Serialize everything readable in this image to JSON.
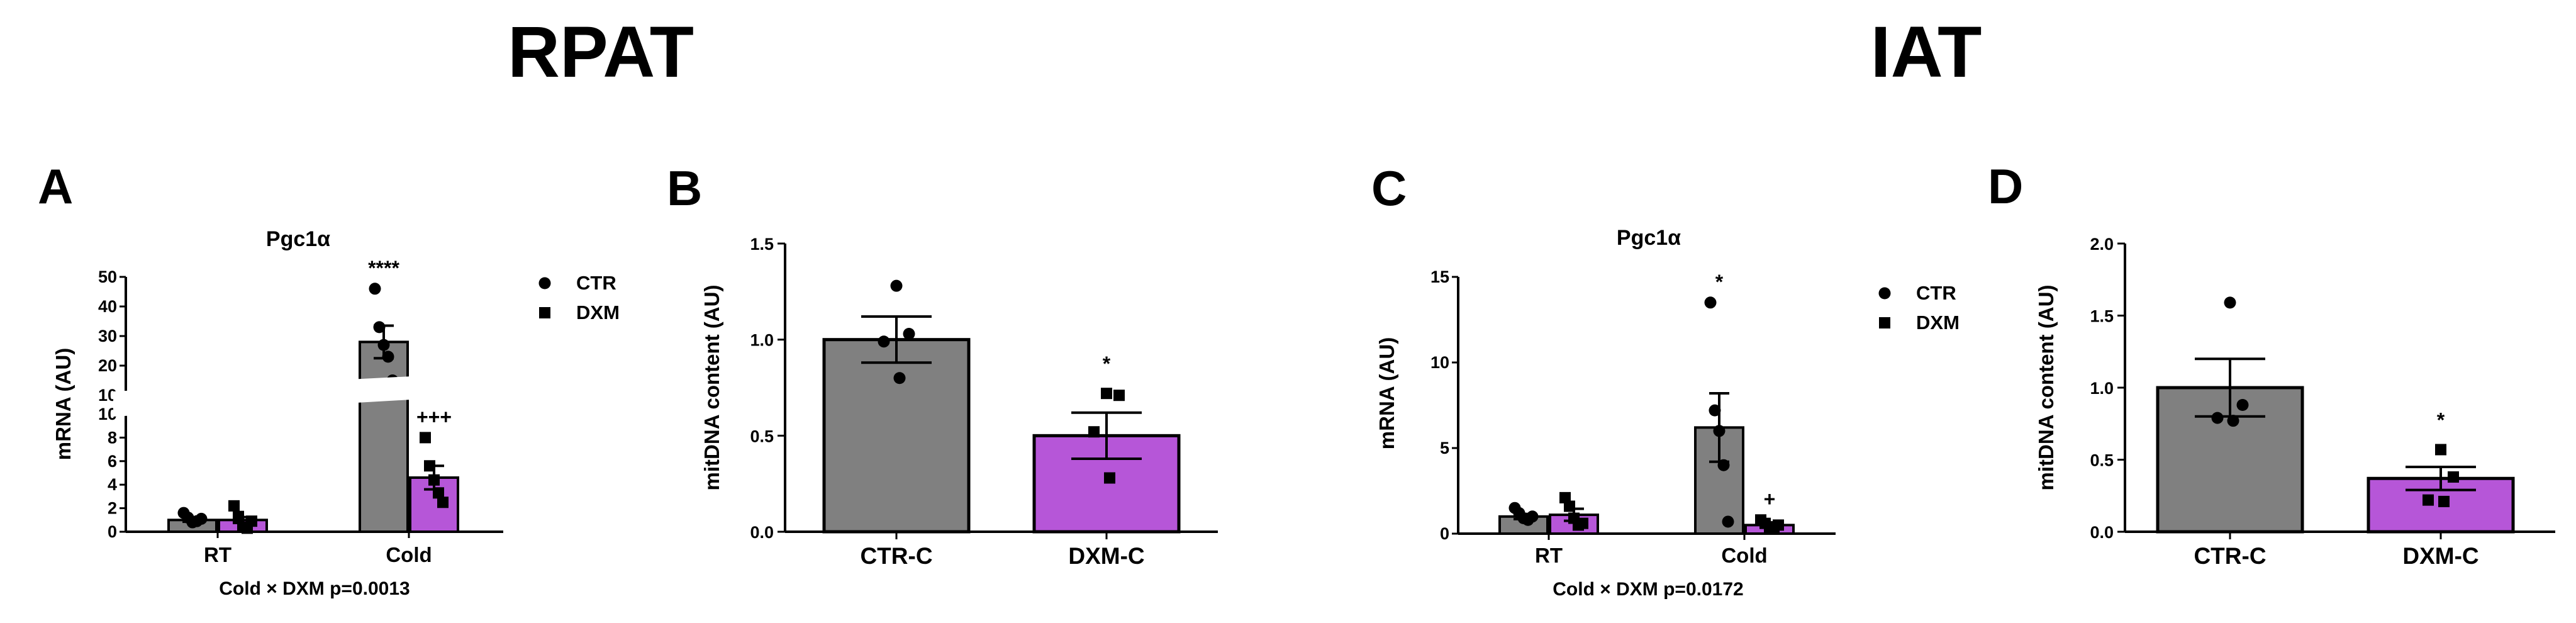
{
  "section_titles": [
    "RPAT",
    "IAT"
  ],
  "chart_data": [
    {
      "panel": "A",
      "type": "bar",
      "title": "Pgc1α",
      "xlabel": "",
      "ylabel": "mRNA (AU)",
      "categories": [
        "RT",
        "Cold"
      ],
      "axis_break": {
        "lower": [
          0,
          10
        ],
        "upper": [
          10,
          50
        ]
      },
      "yticks_lower": [
        0,
        2,
        4,
        6,
        8,
        10
      ],
      "yticks_upper": [
        10,
        20,
        30,
        40,
        50
      ],
      "legend": [
        {
          "label": "CTR",
          "marker": "circle"
        },
        {
          "label": "DXM",
          "marker": "square"
        }
      ],
      "series": [
        {
          "name": "CTR",
          "color": "#808080",
          "marker": "circle",
          "values": [
            1.0,
            28.0
          ],
          "sem": [
            0.15,
            5.5
          ],
          "points": [
            [
              1.6,
              1.2,
              0.8,
              0.9,
              1.1
            ],
            [
              46,
              33,
              27,
              23,
              15
            ]
          ]
        },
        {
          "name": "DXM",
          "color": "#b656d8",
          "marker": "square",
          "values": [
            1.0,
            4.6
          ],
          "sem": [
            0.25,
            1.0
          ],
          "points": [
            [
              2.2,
              1.3,
              0.4,
              0.3,
              0.9
            ],
            [
              8.0,
              5.6,
              4.4,
              3.3,
              2.5
            ]
          ]
        }
      ],
      "annotations": [
        {
          "text": "****",
          "category": 1,
          "series": 0
        },
        {
          "text": "+++",
          "category": 1,
          "series": 1
        }
      ],
      "stat_text": "Cold × DXM p=0.0013"
    },
    {
      "panel": "B",
      "type": "bar",
      "title": "",
      "xlabel": "",
      "ylabel": "mitDNA content (AU)",
      "categories": [
        "CTR-C",
        "DXM-C"
      ],
      "ylim": [
        0,
        1.5
      ],
      "yticks": [
        "0.0",
        "0.5",
        "1.0",
        "1.5"
      ],
      "values": [
        1.0,
        0.5
      ],
      "sem": [
        0.12,
        0.12
      ],
      "colors": [
        "#808080",
        "#b656d8"
      ],
      "markers": [
        "circle",
        "square"
      ],
      "points": [
        [
          1.28,
          1.03,
          0.99,
          0.8
        ],
        [
          0.72,
          0.71,
          0.52,
          0.28
        ]
      ],
      "annotations": [
        {
          "text": "*",
          "category": 1
        }
      ]
    },
    {
      "panel": "C",
      "type": "bar",
      "title": "Pgc1α",
      "xlabel": "",
      "ylabel": "mRNA (AU)",
      "categories": [
        "RT",
        "Cold"
      ],
      "ylim": [
        0,
        15
      ],
      "yticks": [
        0,
        5,
        10,
        15
      ],
      "legend": [
        {
          "label": "CTR",
          "marker": "circle"
        },
        {
          "label": "DXM",
          "marker": "square"
        }
      ],
      "series": [
        {
          "name": "CTR",
          "color": "#808080",
          "marker": "circle",
          "values": [
            1.0,
            6.2
          ],
          "sem": [
            0.15,
            2.0
          ],
          "points": [
            [
              1.5,
              1.2,
              0.9,
              0.8,
              1.0
            ],
            [
              13.5,
              7.2,
              6.0,
              4.0,
              0.7
            ]
          ]
        },
        {
          "name": "DXM",
          "color": "#b656d8",
          "marker": "square",
          "values": [
            1.1,
            0.5
          ],
          "sem": [
            0.35,
            0.15
          ],
          "points": [
            [
              2.1,
              1.6,
              0.9,
              0.5,
              0.6
            ],
            [
              0.8,
              0.6,
              0.4,
              0.3,
              0.5
            ]
          ]
        }
      ],
      "annotations": [
        {
          "text": "*",
          "category": 1,
          "series": 0
        },
        {
          "text": "+",
          "category": 1,
          "series": 1
        }
      ],
      "stat_text": "Cold × DXM p=0.0172"
    },
    {
      "panel": "D",
      "type": "bar",
      "title": "",
      "xlabel": "",
      "ylabel": "mitDNA content (AU)",
      "categories": [
        "CTR-C",
        "DXM-C"
      ],
      "ylim": [
        0,
        2.0
      ],
      "yticks": [
        "0.0",
        "0.5",
        "1.0",
        "1.5",
        "2.0"
      ],
      "values": [
        1.0,
        0.37
      ],
      "sem": [
        0.2,
        0.08
      ],
      "colors": [
        "#808080",
        "#b656d8"
      ],
      "markers": [
        "circle",
        "square"
      ],
      "points": [
        [
          1.59,
          0.88,
          0.79,
          0.77
        ],
        [
          0.57,
          0.38,
          0.22,
          0.21
        ]
      ],
      "annotations": [
        {
          "text": "*",
          "category": 1
        }
      ]
    }
  ]
}
